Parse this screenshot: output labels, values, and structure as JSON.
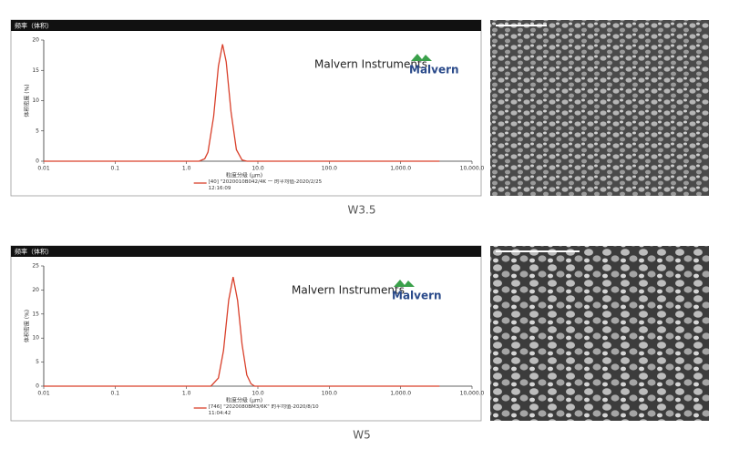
{
  "chart_data": [
    {
      "type": "line",
      "header": "频率（体积）",
      "caption": "W3.5",
      "brand": "Malvern Instruments",
      "logo": "Malvern",
      "ylabel": "体积密度 (%)",
      "xlabel": "粒度分级 (μm)",
      "log_x": true,
      "xlim": [
        0.01,
        10000
      ],
      "xticks": [
        0.01,
        0.1,
        {
          "value": 1,
          "label": "1.0"
        },
        {
          "value": 10,
          "label": "10.0"
        },
        {
          "value": 100,
          "label": "100.0"
        },
        {
          "value": 1000,
          "label": "1,000.0"
        },
        {
          "value": 10000,
          "label": "10,000.0"
        }
      ],
      "ylim": [
        0,
        20
      ],
      "yticks": [
        0,
        5,
        10,
        15,
        20
      ],
      "x": [
        0.01,
        1.5,
        1.8,
        2.0,
        2.4,
        2.8,
        3.2,
        3.6,
        4.2,
        5,
        6,
        7,
        3500
      ],
      "series": [
        {
          "name": "[40] \"2020010B042/4K 一 的平均值-2020/2/25 12:16:09",
          "color": "#d9402b",
          "values": [
            0,
            0,
            0.4,
            1.5,
            7.4,
            15.7,
            19.3,
            16.4,
            8.2,
            1.9,
            0.2,
            0,
            0
          ]
        }
      ]
    },
    {
      "type": "line",
      "header": "频率（体积）",
      "caption": "W5",
      "brand": "Malvern Instruments",
      "logo": "Malvern",
      "ylabel": "体积密度 (%)",
      "xlabel": "粒度分级 (μm)",
      "log_x": true,
      "xlim": [
        0.01,
        10000
      ],
      "xticks": [
        0.01,
        0.1,
        {
          "value": 1,
          "label": "1.0"
        },
        {
          "value": 10,
          "label": "10.0"
        },
        {
          "value": 100,
          "label": "100.0"
        },
        {
          "value": 1000,
          "label": "1,000.0"
        },
        {
          "value": 10000,
          "label": "10,000.0"
        }
      ],
      "ylim": [
        0,
        25
      ],
      "yticks": [
        0,
        5,
        10,
        15,
        20,
        25
      ],
      "x": [
        0.01,
        2.2,
        2.8,
        3.3,
        3.9,
        4.5,
        5.2,
        6,
        7,
        8,
        9,
        3500
      ],
      "series": [
        {
          "name": "[746] \"2020080BM3/6K\" 的平均值-2020/8/10 11:04:42",
          "color": "#d9402b",
          "values": [
            0,
            0,
            1.7,
            7.4,
            17.9,
            22.7,
            17.8,
            8.7,
            2.3,
            0.5,
            0,
            0
          ]
        }
      ]
    }
  ]
}
